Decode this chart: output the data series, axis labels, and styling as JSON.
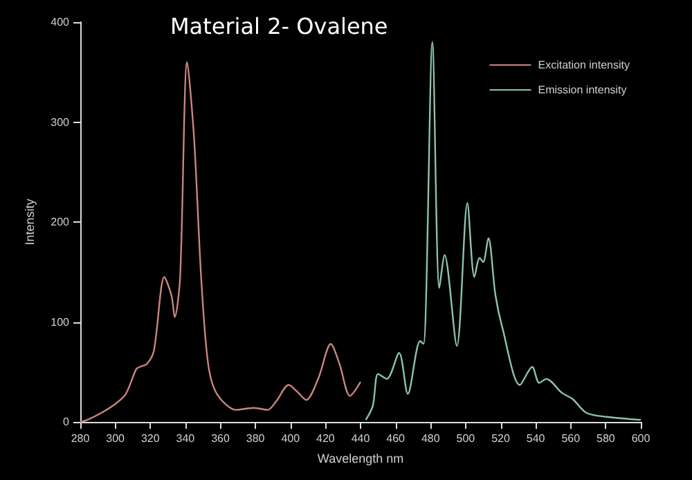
{
  "chart_data": {
    "type": "line",
    "title": "Material 2- Ovalene",
    "xlabel": "Wavelength nm",
    "ylabel": "Intensity",
    "xlim": [
      280,
      600
    ],
    "xticks": [
      280,
      300,
      320,
      340,
      360,
      380,
      400,
      420,
      440,
      460,
      480,
      500,
      520,
      540,
      560,
      580,
      600
    ],
    "ylim": [
      0,
      400
    ],
    "yticks": [
      0,
      100,
      200,
      300,
      400
    ],
    "grid": false,
    "legend": "top right",
    "marker": "none",
    "line_style": "solid",
    "series": [
      {
        "name": "Excitation intensity",
        "color": "#c9857f",
        "x": [
          280,
          284,
          292,
          300,
          306,
          312,
          314,
          318,
          322,
          328,
          332,
          334,
          337,
          341,
          345,
          349,
          353,
          358,
          369,
          379,
          387,
          392,
          399,
          404,
          409,
          416,
          423,
          428,
          434,
          440
        ],
        "values": [
          0,
          2,
          9,
          18,
          28,
          53,
          55,
          58,
          71,
          145,
          127,
          105,
          145,
          360,
          283,
          145,
          58,
          28,
          12,
          14,
          12,
          21,
          37,
          30,
          22,
          44,
          78,
          58,
          26,
          40
        ]
      },
      {
        "name": "Emission intensity",
        "color": "#8cc4ae",
        "x": [
          443,
          447,
          450,
          455,
          462,
          467,
          474,
          476,
          481,
          485,
          488,
          495,
          501,
          505,
          508,
          510,
          513,
          517,
          521,
          531,
          538,
          542,
          546,
          555,
          561,
          569,
          581,
          600
        ],
        "values": [
          2,
          16,
          48,
          43,
          69,
          28,
          81,
          78,
          380,
          134,
          167,
          76,
          219,
          145,
          164,
          160,
          184,
          127,
          94,
          37,
          55,
          39,
          43,
          29,
          23,
          9,
          5,
          2
        ]
      }
    ]
  }
}
